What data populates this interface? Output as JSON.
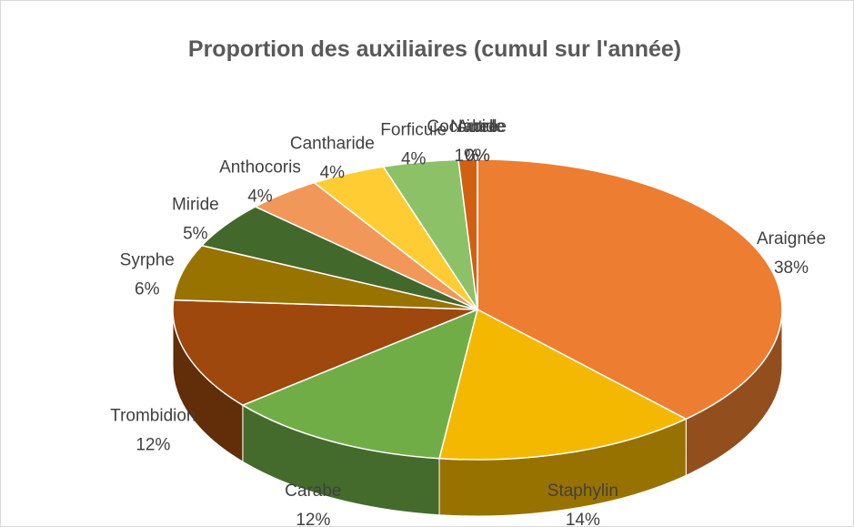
{
  "chart_data": {
    "type": "pie3d",
    "title": "Proportion des auxiliaires (cumul sur l'année)",
    "categories": [
      "Araignée",
      "Staphylin",
      "Carabe",
      "Trombidion",
      "Syrphe",
      "Miride",
      "Anthocoris",
      "Cantharide",
      "Forficule",
      "Coccinelle",
      "Nabide",
      "Autre"
    ],
    "values": [
      38,
      14,
      12,
      12,
      6,
      5,
      4,
      4,
      4,
      1,
      0,
      0
    ],
    "value_labels": [
      "38%",
      "14%",
      "12%",
      "12%",
      "6%",
      "5%",
      "4%",
      "4%",
      "4%",
      "1%",
      "0%",
      "0%"
    ],
    "colors": [
      "#ED7D31",
      "#F5B800",
      "#70AD47",
      "#9E480E",
      "#997300",
      "#43682B",
      "#F1975A",
      "#FFCD33",
      "#8CC168",
      "#D26012",
      "#B38600",
      "#548235"
    ]
  }
}
